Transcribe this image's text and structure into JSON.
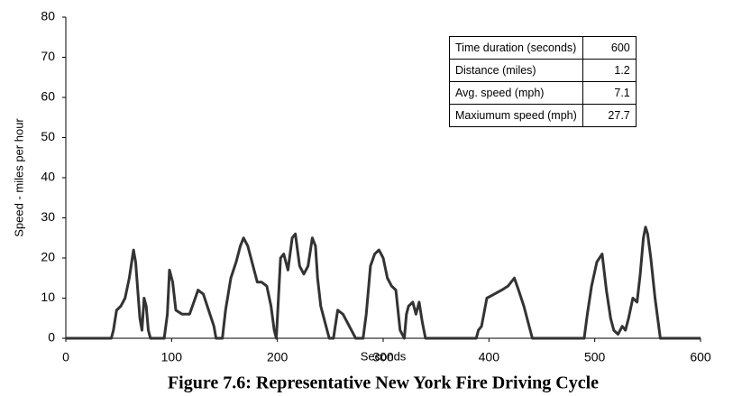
{
  "chart_data": {
    "type": "line",
    "caption": "Figure 7.6: Representative New York Fire Driving Cycle",
    "x_label": "Seconds",
    "y_label": "Speed - miles per hour",
    "x": [
      0,
      43,
      45,
      48,
      52,
      56,
      60,
      64,
      66,
      68,
      70,
      72,
      74,
      76,
      78,
      80,
      93,
      96,
      98,
      101,
      104,
      110,
      117,
      121,
      125,
      130,
      135,
      140,
      142,
      148,
      151,
      156,
      161,
      165,
      168,
      172,
      176,
      181,
      185,
      190,
      194,
      197,
      199,
      203,
      206,
      210,
      214,
      217,
      221,
      225,
      229,
      233,
      236,
      238,
      241,
      245,
      249,
      253,
      257,
      262,
      266,
      270,
      274,
      281,
      284,
      288,
      292,
      296,
      300,
      304,
      308,
      312,
      316,
      320,
      322,
      324,
      328,
      331,
      334,
      337,
      340,
      388,
      390,
      393,
      398,
      405,
      412,
      418,
      424,
      428,
      433,
      437,
      441,
      490,
      493,
      497,
      502,
      507,
      511,
      515,
      518,
      522,
      526,
      529,
      532,
      536,
      540,
      543,
      546,
      548,
      550,
      553,
      557,
      562,
      600
    ],
    "values": [
      0,
      0,
      2,
      7,
      8,
      10,
      15,
      22,
      19,
      12,
      5,
      2,
      10,
      8,
      2,
      0,
      0,
      6,
      17,
      14,
      7,
      6,
      6,
      9,
      12,
      11,
      7,
      3,
      0,
      0,
      7,
      15,
      19,
      23,
      25,
      23,
      19,
      14,
      14,
      13,
      8,
      2,
      0,
      20,
      21,
      17,
      25,
      26,
      18,
      16,
      18,
      25,
      23,
      15,
      8,
      4,
      0,
      0,
      7,
      6,
      4,
      2,
      0,
      0,
      6,
      18,
      21,
      22,
      20,
      15,
      13,
      12,
      2,
      0,
      6,
      8,
      9,
      6,
      9,
      4,
      0,
      0,
      2,
      3,
      10,
      11,
      12,
      13,
      15,
      12,
      8,
      4,
      0,
      0,
      6,
      13,
      19,
      21,
      12,
      5,
      2,
      1,
      3,
      2,
      5,
      10,
      9,
      16,
      25,
      27.7,
      26,
      20,
      10,
      0,
      0
    ],
    "color": "#333333",
    "xlim": [
      0,
      600
    ],
    "xticks": [
      0,
      100,
      200,
      300,
      400,
      500,
      600
    ],
    "ylim": [
      0,
      80
    ],
    "yticks": [
      0,
      10,
      20,
      30,
      40,
      50,
      60,
      70,
      80
    ],
    "grid": false,
    "table": [
      [
        "Time duration (seconds)",
        "600"
      ],
      [
        "Distance (miles)",
        "1.2"
      ],
      [
        "Avg. speed (mph)",
        "7.1"
      ],
      [
        "Maxiumum speed (mph)",
        "27.7"
      ]
    ]
  }
}
